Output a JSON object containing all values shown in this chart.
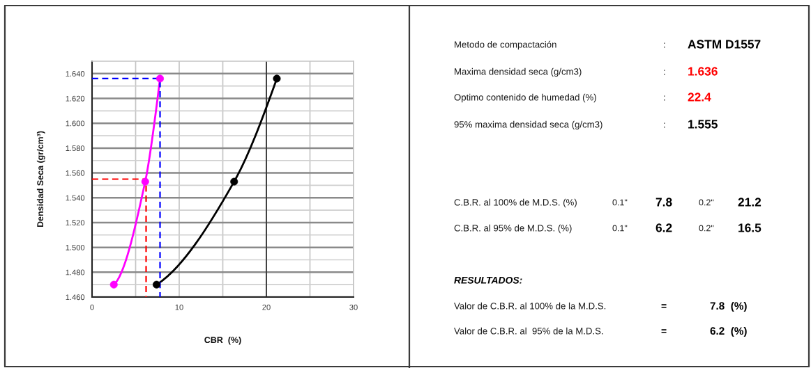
{
  "chart_data": [
    {
      "type": "line",
      "xlabel": "CBR  (%)",
      "ylabel": "Densidad Seca (gr/cm³)",
      "xlim": [
        0,
        30
      ],
      "xticks": [
        0,
        {
          "value": 5,
          "label": null
        },
        10,
        {
          "value": 15,
          "label": null
        },
        20,
        {
          "value": 25,
          "label": null
        },
        30
      ],
      "ylim": [
        1.46,
        1.65
      ],
      "yticks": [
        {
          "value": 1.46,
          "label": "1.460"
        },
        {
          "value": 1.47,
          "label": null
        },
        {
          "value": 1.48,
          "label": "1.480"
        },
        {
          "value": 1.49,
          "label": null
        },
        {
          "value": 1.5,
          "label": "1.500"
        },
        {
          "value": 1.51,
          "label": null
        },
        {
          "value": 1.52,
          "label": "1.520"
        },
        {
          "value": 1.53,
          "label": null
        },
        {
          "value": 1.54,
          "label": "1.540"
        },
        {
          "value": 1.55,
          "label": null
        },
        {
          "value": 1.56,
          "label": "1.560"
        },
        {
          "value": 1.57,
          "label": null
        },
        {
          "value": 1.58,
          "label": "1.580"
        },
        {
          "value": 1.59,
          "label": null
        },
        {
          "value": 1.6,
          "label": "1.600"
        },
        {
          "value": 1.61,
          "label": null
        },
        {
          "value": 1.62,
          "label": "1.620"
        },
        {
          "value": 1.63,
          "label": null
        },
        {
          "value": 1.64,
          "label": "1.640"
        }
      ],
      "grid": true,
      "ref_lines": [
        {
          "axis": "x",
          "value": 20,
          "color": "#333333",
          "line_style": "solid"
        }
      ],
      "series": [
        {
          "color": "#ff00ff",
          "x": [
            2.5,
            6.1,
            7.8
          ],
          "values": [
            1.47,
            1.553,
            1.636
          ],
          "marker": "circle",
          "line_style": "solid"
        },
        {
          "color": "#000000",
          "x": [
            7.4,
            16.3,
            21.2
          ],
          "values": [
            1.47,
            1.553,
            1.636
          ],
          "marker": "circle",
          "line_style": "solid"
        },
        {
          "color": "#ff0000",
          "x": [
            0,
            6.2,
            6.2
          ],
          "values": [
            1.555,
            1.555,
            1.46
          ],
          "marker": "none",
          "line_style": "dashed"
        },
        {
          "color": "#0000ff",
          "x": [
            0,
            7.8,
            7.8
          ],
          "values": [
            1.636,
            1.636,
            1.46
          ],
          "marker": "none",
          "line_style": "dashed"
        }
      ]
    },
    {
      "type": "other",
      "annotations": [
        "Metodo de compactación",
        ":",
        "ASTM D1557",
        "Maxima densidad seca (g/cm3)",
        ":",
        "1.636",
        "Optimo contenido de humedad (%)",
        ":",
        "22.4",
        "95% maxima densidad seca (g/cm3)",
        ":",
        "1.555",
        "C.B.R. al 100% de M.D.S. (%)",
        "0.1\"",
        "7.8",
        "0.2\"",
        "21.2",
        "C.B.R. al 95% de M.D.S. (%)",
        "0.1\"",
        "6.2",
        "0.2\"",
        "16.5",
        "RESULTADOS:",
        "Valor de C.B.R. al 100% de la M.D.S.",
        "=",
        "7.8  (%)",
        "Valor de C.B.R. al  95% de la M.D.S.",
        "=",
        "6.2  (%)"
      ],
      "colors": [
        "#1a1a1a",
        "#1a1a1a",
        "#000000",
        "#1a1a1a",
        "#1a1a1a",
        "#ff0000",
        "#1a1a1a",
        "#1a1a1a",
        "#ff0000",
        "#1a1a1a",
        "#1a1a1a",
        "#000000",
        "#1a1a1a",
        "#1a1a1a",
        "#000000",
        "#1a1a1a",
        "#000000",
        "#1a1a1a",
        "#1a1a1a",
        "#000000",
        "#1a1a1a",
        "#000000",
        "#000000",
        "#1a1a1a",
        "#000000",
        "#000000",
        "#1a1a1a",
        "#000000",
        "#000000"
      ]
    }
  ]
}
